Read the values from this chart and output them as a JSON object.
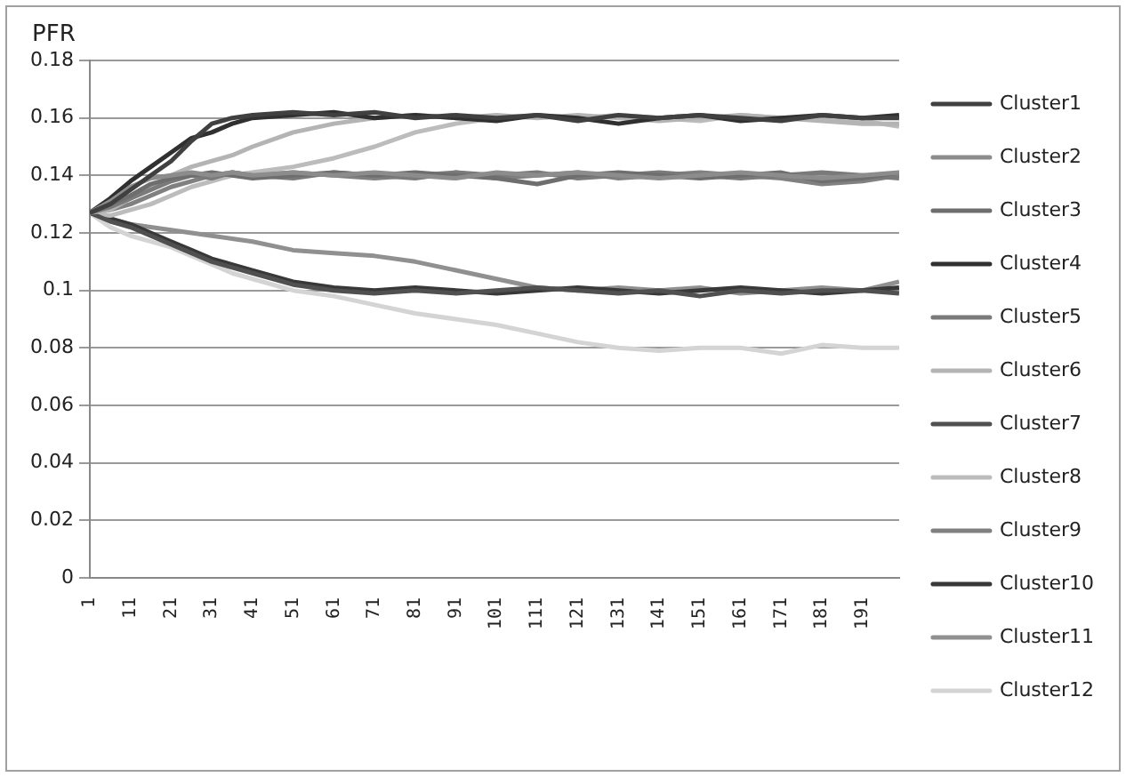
{
  "chart_data": {
    "type": "line",
    "ylabel": "PFR",
    "x": [
      1,
      6,
      11,
      16,
      21,
      26,
      31,
      36,
      41,
      51,
      61,
      71,
      81,
      91,
      101,
      111,
      121,
      131,
      141,
      151,
      161,
      171,
      181,
      191,
      200
    ],
    "xlim": [
      1,
      200
    ],
    "xticks": [
      1,
      11,
      21,
      31,
      41,
      51,
      61,
      71,
      81,
      91,
      101,
      111,
      121,
      131,
      141,
      151,
      161,
      171,
      181,
      191
    ],
    "ylim": [
      0,
      0.18
    ],
    "yticks": [
      0,
      0.02,
      0.04,
      0.06,
      0.08,
      0.1,
      0.12,
      0.14,
      0.16,
      0.18
    ],
    "grid": "y",
    "legend": "right",
    "marker": "none",
    "line_style": "solid",
    "series": [
      {
        "name": "Cluster1",
        "color": "#404040",
        "values": [
          0.127,
          0.13,
          0.135,
          0.14,
          0.145,
          0.152,
          0.158,
          0.16,
          0.161,
          0.162,
          0.161,
          0.162,
          0.16,
          0.161,
          0.16,
          0.161,
          0.159,
          0.161,
          0.16,
          0.161,
          0.16,
          0.159,
          0.161,
          0.16,
          0.16
        ]
      },
      {
        "name": "Cluster2",
        "color": "#8c8c8c",
        "values": [
          0.127,
          0.131,
          0.136,
          0.139,
          0.14,
          0.141,
          0.14,
          0.141,
          0.14,
          0.141,
          0.14,
          0.141,
          0.14,
          0.139,
          0.141,
          0.14,
          0.141,
          0.14,
          0.139,
          0.14,
          0.141,
          0.14,
          0.139,
          0.14,
          0.141
        ]
      },
      {
        "name": "Cluster3",
        "color": "#6e6e6e",
        "values": [
          0.127,
          0.13,
          0.133,
          0.137,
          0.139,
          0.14,
          0.141,
          0.14,
          0.139,
          0.14,
          0.141,
          0.14,
          0.141,
          0.14,
          0.139,
          0.137,
          0.14,
          0.141,
          0.14,
          0.139,
          0.14,
          0.141,
          0.138,
          0.139,
          0.141
        ]
      },
      {
        "name": "Cluster4",
        "color": "#303030",
        "values": [
          0.127,
          0.132,
          0.138,
          0.143,
          0.148,
          0.153,
          0.155,
          0.158,
          0.16,
          0.161,
          0.162,
          0.16,
          0.161,
          0.16,
          0.159,
          0.161,
          0.16,
          0.158,
          0.16,
          0.161,
          0.159,
          0.16,
          0.161,
          0.16,
          0.161
        ]
      },
      {
        "name": "Cluster5",
        "color": "#7a7a7a",
        "values": [
          0.127,
          0.129,
          0.132,
          0.135,
          0.138,
          0.14,
          0.139,
          0.141,
          0.14,
          0.139,
          0.141,
          0.14,
          0.139,
          0.141,
          0.14,
          0.141,
          0.139,
          0.14,
          0.141,
          0.14,
          0.139,
          0.14,
          0.141,
          0.14,
          0.139
        ]
      },
      {
        "name": "Cluster6",
        "color": "#b4b4b4",
        "values": [
          0.127,
          0.128,
          0.132,
          0.136,
          0.14,
          0.143,
          0.145,
          0.147,
          0.15,
          0.155,
          0.158,
          0.16,
          0.161,
          0.16,
          0.161,
          0.16,
          0.161,
          0.16,
          0.159,
          0.16,
          0.161,
          0.16,
          0.159,
          0.158,
          0.158
        ]
      },
      {
        "name": "Cluster7",
        "color": "#505050",
        "values": [
          0.127,
          0.124,
          0.122,
          0.119,
          0.116,
          0.113,
          0.11,
          0.108,
          0.106,
          0.102,
          0.1,
          0.099,
          0.1,
          0.099,
          0.1,
          0.101,
          0.1,
          0.099,
          0.1,
          0.098,
          0.1,
          0.099,
          0.1,
          0.1,
          0.099
        ]
      },
      {
        "name": "Cluster8",
        "color": "#bcbcbc",
        "values": [
          0.127,
          0.126,
          0.128,
          0.13,
          0.133,
          0.136,
          0.138,
          0.14,
          0.141,
          0.143,
          0.146,
          0.15,
          0.155,
          0.158,
          0.16,
          0.161,
          0.16,
          0.161,
          0.16,
          0.159,
          0.161,
          0.16,
          0.16,
          0.159,
          0.157
        ]
      },
      {
        "name": "Cluster9",
        "color": "#808080",
        "values": [
          0.127,
          0.128,
          0.13,
          0.133,
          0.136,
          0.138,
          0.14,
          0.141,
          0.14,
          0.141,
          0.14,
          0.139,
          0.14,
          0.141,
          0.139,
          0.14,
          0.141,
          0.139,
          0.14,
          0.141,
          0.14,
          0.139,
          0.137,
          0.138,
          0.14
        ]
      },
      {
        "name": "Cluster10",
        "color": "#383838",
        "values": [
          0.127,
          0.125,
          0.123,
          0.12,
          0.117,
          0.114,
          0.111,
          0.109,
          0.107,
          0.103,
          0.101,
          0.1,
          0.101,
          0.1,
          0.099,
          0.1,
          0.101,
          0.1,
          0.099,
          0.1,
          0.101,
          0.1,
          0.099,
          0.1,
          0.101
        ]
      },
      {
        "name": "Cluster11",
        "color": "#909090",
        "values": [
          0.127,
          0.125,
          0.123,
          0.122,
          0.121,
          0.12,
          0.119,
          0.118,
          0.117,
          0.114,
          0.113,
          0.112,
          0.11,
          0.107,
          0.104,
          0.101,
          0.1,
          0.101,
          0.1,
          0.101,
          0.099,
          0.1,
          0.101,
          0.1,
          0.103
        ]
      },
      {
        "name": "Cluster12",
        "color": "#d4d4d4",
        "values": [
          0.127,
          0.122,
          0.119,
          0.117,
          0.115,
          0.112,
          0.109,
          0.106,
          0.104,
          0.1,
          0.098,
          0.095,
          0.092,
          0.09,
          0.088,
          0.085,
          0.082,
          0.08,
          0.079,
          0.08,
          0.08,
          0.078,
          0.081,
          0.08,
          0.08
        ]
      }
    ]
  }
}
